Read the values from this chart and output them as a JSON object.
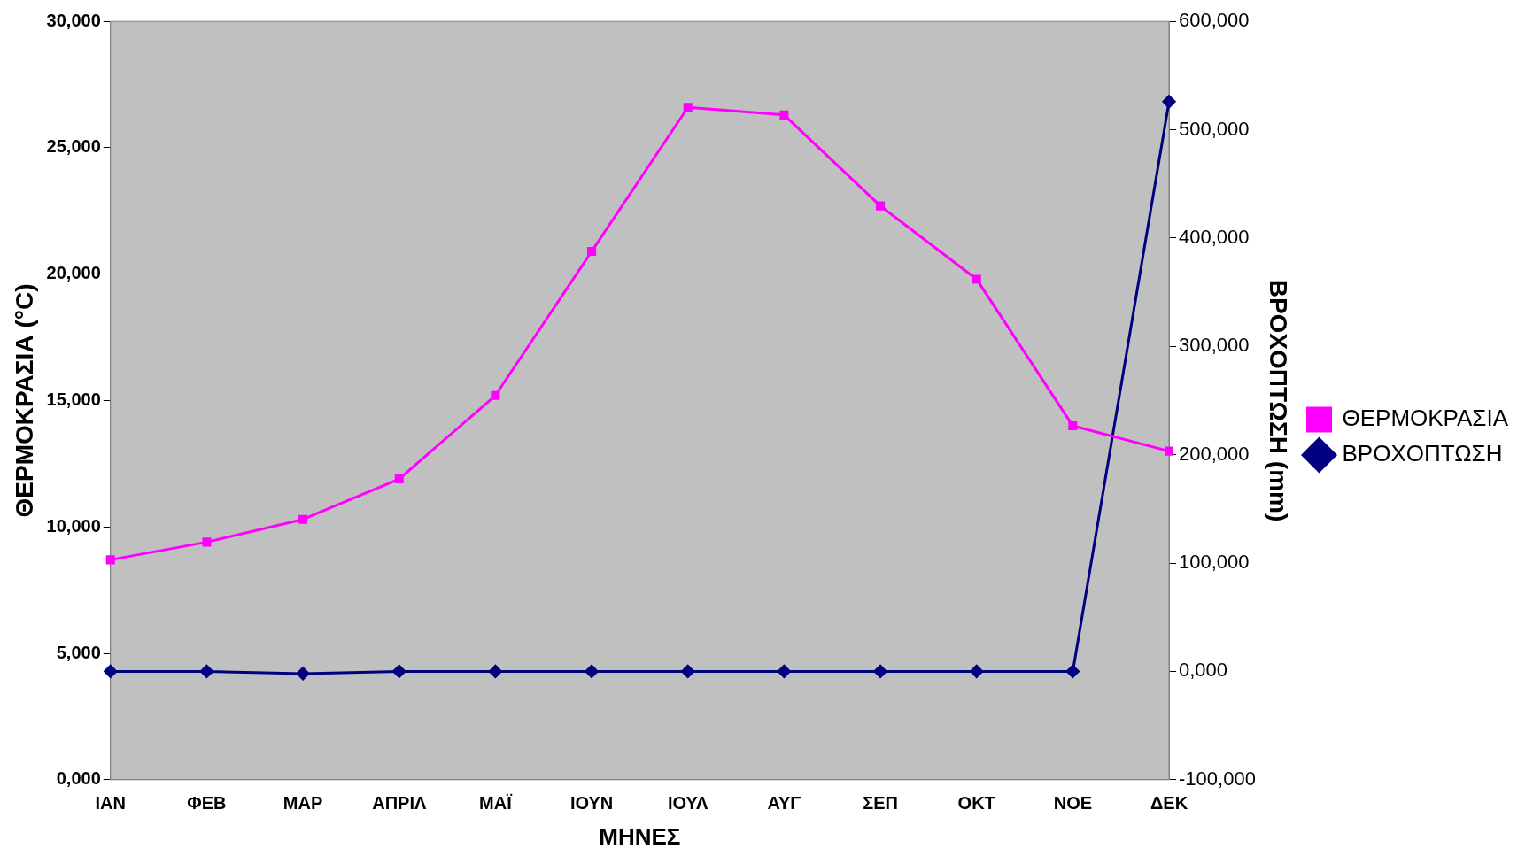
{
  "chart_data": {
    "type": "line",
    "xlabel": "ΜΗΝΕΣ",
    "ylabel": "ΘΕΡΜΟΚΡΑΣΙΑ (°C)",
    "y2label": "ΒΡΟΧΟΠΤΩΣΗ (mm)",
    "categories": [
      "ΙΑΝ",
      "ΦΕΒ",
      "ΜΑΡ",
      "ΑΠΡΙΛ",
      "ΜΑΪ",
      "ΙΟΥΝ",
      "ΙΟΥΛ",
      "ΑΥΓ",
      "ΣΕΠ",
      "ΟΚΤ",
      "ΝΟΕ",
      "ΔΕΚ"
    ],
    "series": [
      {
        "name": "ΘΕΡΜΟΚΡΑΣΙΑ",
        "color": "#ff00ff",
        "marker": "square",
        "values": [
          8.7,
          9.4,
          10.3,
          11.9,
          15.2,
          20.9,
          26.6,
          26.3,
          22.7,
          19.8,
          14.0,
          13.0
        ]
      },
      {
        "name": "ΒΡΟΧΟΠΤΩΣΗ",
        "color": "#000080",
        "marker": "diamond",
        "axis": "y2",
        "values": [
          0,
          0,
          -2,
          0,
          0,
          0,
          0,
          0,
          0,
          0,
          0,
          526
        ]
      }
    ],
    "ylim": [
      0,
      30
    ],
    "yticks": [
      {
        "value": 0,
        "label": "0,000"
      },
      {
        "value": 5,
        "label": "5,000"
      },
      {
        "value": 10,
        "label": "10,000"
      },
      {
        "value": 15,
        "label": "15,000"
      },
      {
        "value": 20,
        "label": "20,000"
      },
      {
        "value": 25,
        "label": "25,000"
      },
      {
        "value": 30,
        "label": "30,000"
      }
    ],
    "y2lim": [
      -100,
      600
    ],
    "y2ticks": [
      {
        "value": -100,
        "label": "-100,000"
      },
      {
        "value": 0,
        "label": "0,000"
      },
      {
        "value": 100,
        "label": "100,000"
      },
      {
        "value": 200,
        "label": "200,000"
      },
      {
        "value": 300,
        "label": "300,000"
      },
      {
        "value": 400,
        "label": "400,000"
      },
      {
        "value": 500,
        "label": "500,000"
      },
      {
        "value": 600,
        "label": "600,000"
      }
    ],
    "grid": false,
    "legend": "right",
    "line_style": "solid"
  }
}
